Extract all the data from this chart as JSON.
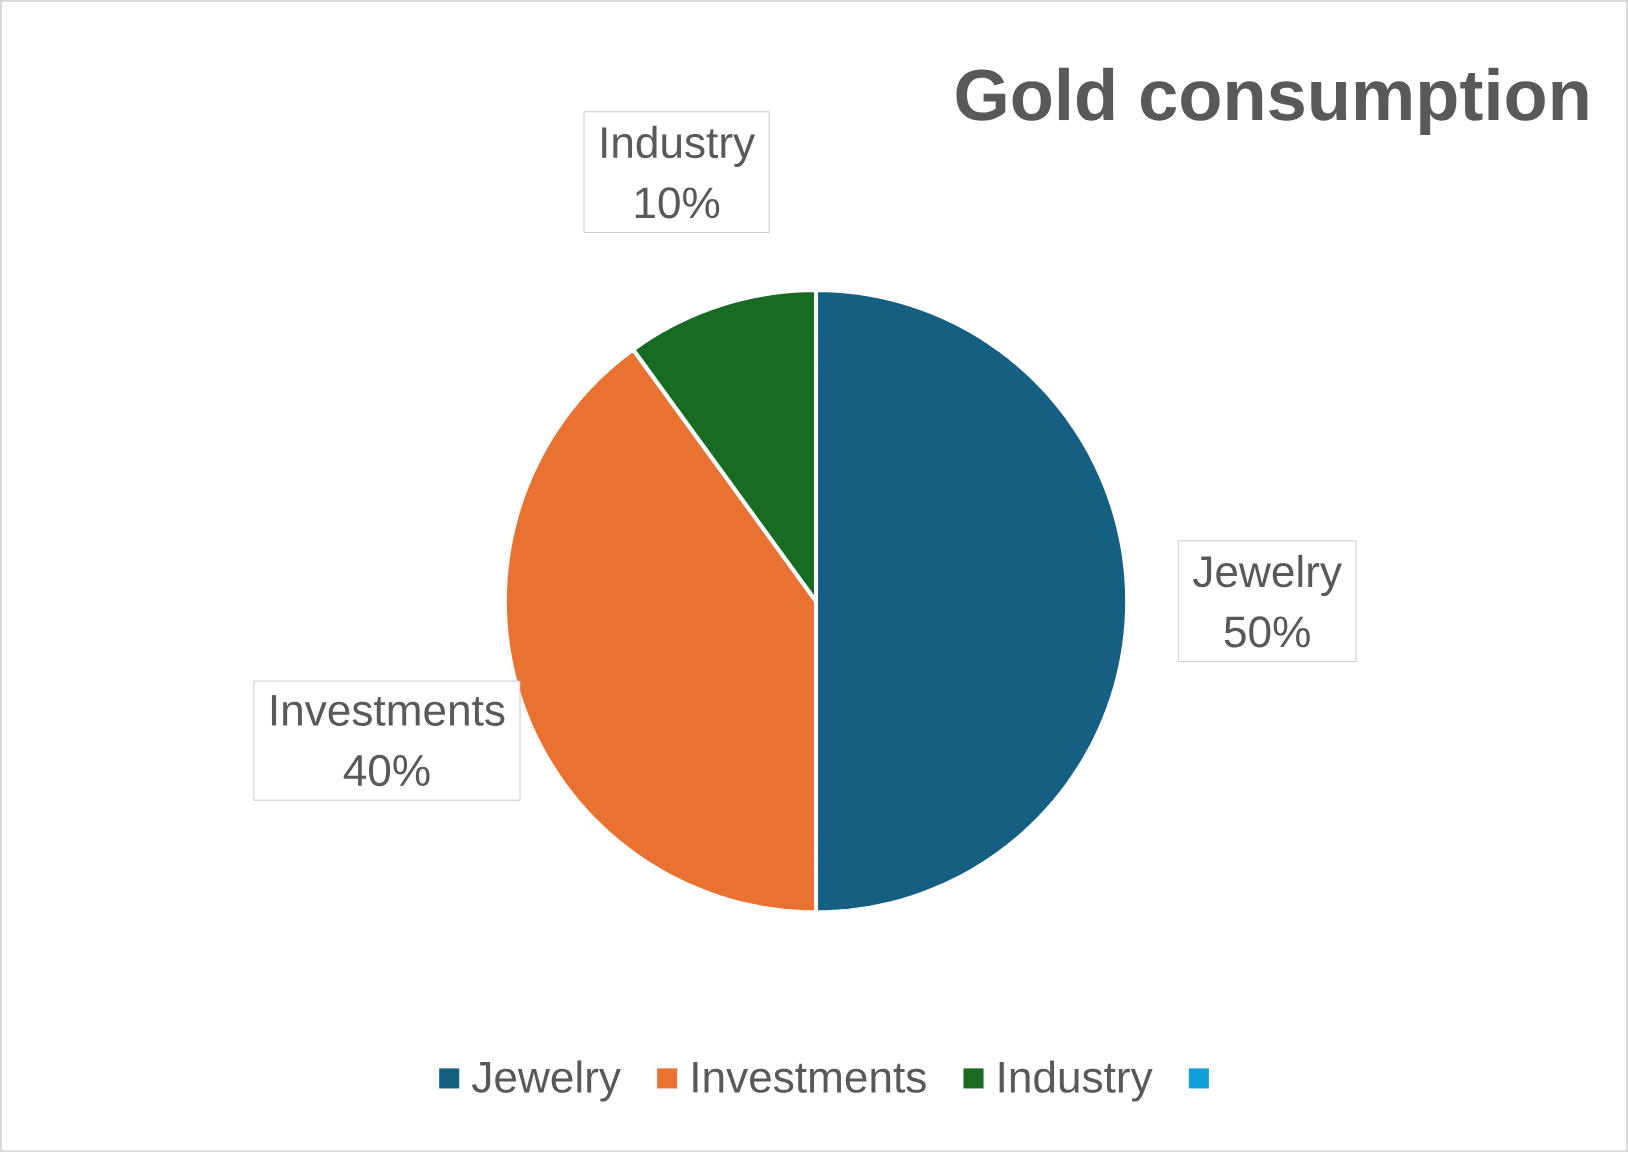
{
  "chart_data": {
    "type": "pie",
    "title": "Gold consumption",
    "categories": [
      "Jewelry",
      "Investments",
      "Industry",
      null
    ],
    "values": [
      50,
      40,
      10,
      0
    ],
    "colors": [
      "#156082",
      "#e97132",
      "#196b24",
      "#0f9ed5"
    ],
    "value_labels": [
      "50%",
      "40%",
      "10%",
      null
    ],
    "legend": "bottom"
  }
}
